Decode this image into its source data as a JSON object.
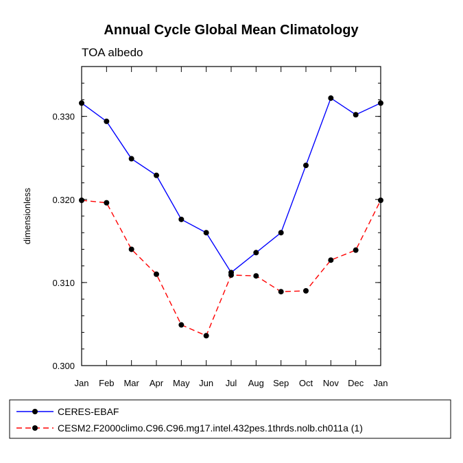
{
  "chart_data": {
    "type": "line",
    "title": "Annual Cycle Global Mean Climatology",
    "subtitle": "TOA albedo",
    "xlabel": "",
    "ylabel": "dimensionless",
    "categories": [
      "Jan",
      "Feb",
      "Mar",
      "Apr",
      "May",
      "Jun",
      "Jul",
      "Aug",
      "Sep",
      "Oct",
      "Nov",
      "Dec",
      "Jan"
    ],
    "ylim": [
      0.3,
      0.336
    ],
    "yticks": [
      0.3,
      0.31,
      0.32,
      0.33
    ],
    "ytick_labels": [
      "0.300",
      "0.310",
      "0.320",
      "0.330"
    ],
    "grid": false,
    "legend_position": "bottom",
    "series": [
      {
        "name": "CERES-EBAF",
        "color": "#0000ff",
        "style": "solid",
        "values": [
          0.3316,
          0.3294,
          0.3249,
          0.3229,
          0.3176,
          0.316,
          0.3112,
          0.3136,
          0.316,
          0.3241,
          0.3322,
          0.3302,
          0.3316
        ]
      },
      {
        "name": "CESM2.F2000climo.C96.C96.mg17.intel.432pes.1thrds.nolb.ch011a (1)",
        "color": "#ff0000",
        "style": "dashed",
        "values": [
          0.3199,
          0.3196,
          0.314,
          0.311,
          0.3049,
          0.3036,
          0.3109,
          0.3108,
          0.3089,
          0.309,
          0.3127,
          0.3139,
          0.3199
        ]
      }
    ]
  }
}
